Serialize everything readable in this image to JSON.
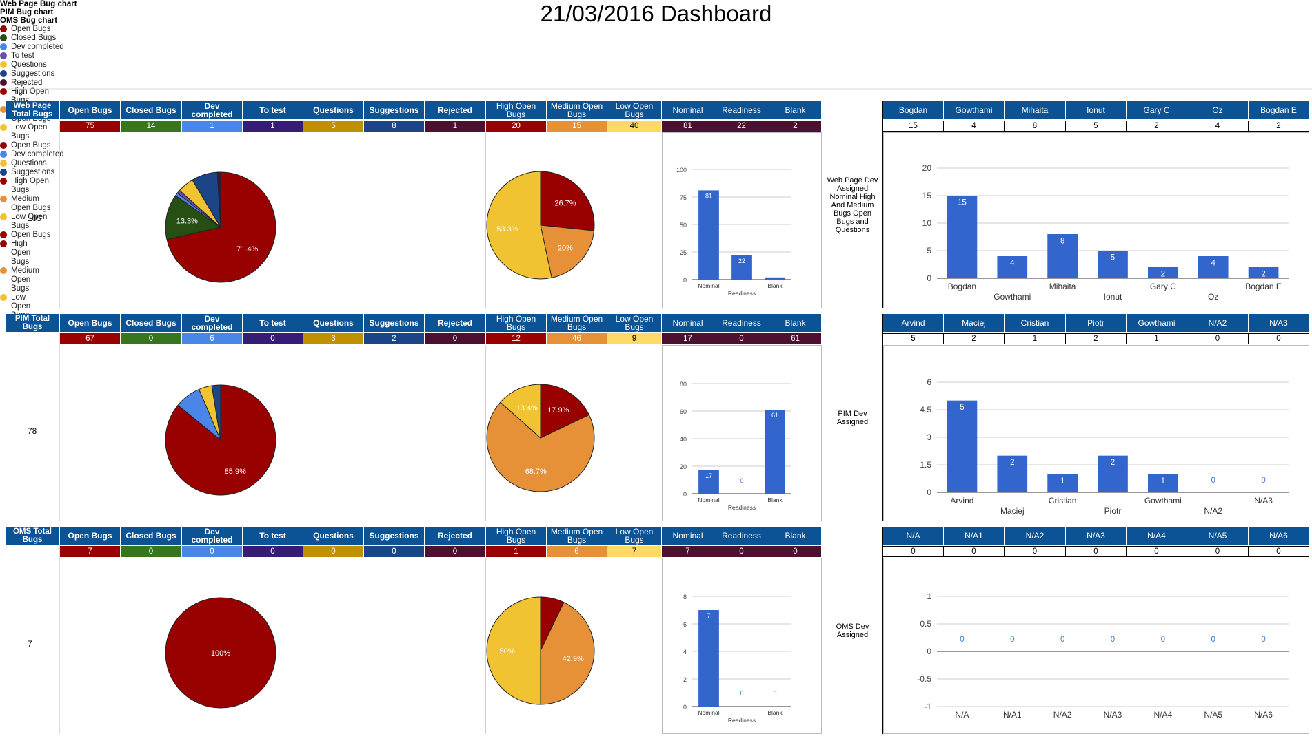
{
  "title": "21/03/2016 Dashboard",
  "colors": {
    "header_bg": "#0b5394",
    "open": "#990000",
    "closed": "#38761d",
    "dev_completed": "#4a86e8",
    "to_test": "#351c75",
    "questions": "#bf9000",
    "suggestions": "#1c4587",
    "rejected": "#4c1130",
    "high": "#990000",
    "medium": "#e69138",
    "low": "#ffd966",
    "nominal": "#4c1130",
    "pie_open": "#990000",
    "pie_closed": "#274e13",
    "pie_dev": "#4a86e8",
    "pie_totest": "#674ea7",
    "pie_questions": "#f1c232",
    "pie_suggestions": "#1c4587",
    "pie_rejected": "#4c1130",
    "pie_high": "#990000",
    "pie_medium": "#e69138",
    "pie_low": "#f1c232",
    "bar": "#3366cc"
  },
  "status_headers": [
    "Open Bugs",
    "Closed Bugs",
    "Dev completed",
    "To test",
    "Questions",
    "Suggestions",
    "Rejected",
    "High Open Bugs",
    "Medium Open Bugs",
    "Low Open Bugs",
    "Nominal",
    "Readiness",
    "Blank"
  ],
  "sections": [
    {
      "label": "Web Page Total Bugs",
      "total": "105",
      "values": [
        "75",
        "14",
        "1",
        "1",
        "5",
        "8",
        "1",
        "20",
        "15",
        "40",
        "81",
        "22",
        "2"
      ],
      "status_chart_title": "Web Page Bug chart",
      "side_label": "Web Page Dev Assigned Nominal High And Medium Bugs Open Bugs and Questions",
      "devs": [
        "Bogdan",
        "Gowthami",
        "Mihaita",
        "Ionut",
        "Gary C",
        "Oz",
        "Bogdan E"
      ],
      "dev_values": [
        "15",
        "4",
        "8",
        "5",
        "2",
        "4",
        "2"
      ]
    },
    {
      "label": "PIM Total Bugs",
      "total": "78",
      "values": [
        "67",
        "0",
        "6",
        "0",
        "3",
        "2",
        "0",
        "12",
        "46",
        "9",
        "17",
        "0",
        "61"
      ],
      "status_chart_title": "PIM Bug chart",
      "side_label": "PIM Dev Assigned",
      "devs": [
        "Arvind",
        "Maciej",
        "Cristian",
        "Piotr",
        "Gowthami",
        "N/A2",
        "N/A3"
      ],
      "dev_values": [
        "5",
        "2",
        "1",
        "2",
        "1",
        "0",
        "0"
      ]
    },
    {
      "label": "OMS Total Bugs",
      "total": "7",
      "values": [
        "7",
        "0",
        "0",
        "0",
        "0",
        "0",
        "0",
        "1",
        "6",
        "7",
        "7",
        "0",
        "0"
      ],
      "status_chart_title": "OMS Bug chart",
      "side_label": "OMS Dev Assigned",
      "devs": [
        "N/A",
        "N/A1",
        "N/A2",
        "N/A3",
        "N/A4",
        "N/A5",
        "N/A6"
      ],
      "dev_values": [
        "0",
        "0",
        "0",
        "0",
        "0",
        "0",
        "0"
      ]
    }
  ],
  "chart_data": [
    {
      "type": "pie",
      "title": "Web Page Bug chart",
      "categories": [
        "Open Bugs",
        "Closed Bugs",
        "Dev completed",
        "To test",
        "Questions",
        "Suggestions",
        "Rejected"
      ],
      "values": [
        75,
        14,
        1,
        1,
        5,
        8,
        1
      ],
      "slice_labels": [
        "71.4%",
        "13.3%",
        "",
        "",
        "",
        "",
        ""
      ],
      "legend": "right"
    },
    {
      "type": "pie",
      "title": "",
      "categories": [
        "High Open Bugs",
        "Medium Open Bugs",
        "Low Open Bugs"
      ],
      "values": [
        20,
        15,
        40
      ],
      "slice_labels": [
        "26.7%",
        "20%",
        "53.3%"
      ],
      "legend": "right"
    },
    {
      "type": "bar",
      "title": "",
      "categories": [
        "Nominal",
        "Readiness",
        "Blank"
      ],
      "values": [
        81,
        22,
        2
      ],
      "xlabel": "Readiness",
      "ylim": [
        0,
        100
      ],
      "yticks": [
        0,
        25,
        50,
        75,
        100
      ],
      "xtick_labels": [
        "Nominal",
        "",
        "Blank"
      ]
    },
    {
      "type": "bar",
      "title": "",
      "categories": [
        "Bogdan",
        "Gowthami",
        "Mihaita",
        "Ionut",
        "Gary C",
        "Oz",
        "Bogdan E"
      ],
      "values": [
        15,
        4,
        8,
        5,
        2,
        4,
        2
      ],
      "ylim": [
        0,
        20
      ],
      "yticks": [
        0,
        5,
        10,
        15,
        20
      ]
    },
    {
      "type": "pie",
      "title": "PIM Bug chart",
      "categories": [
        "Open Bugs",
        "Dev completed",
        "Questions",
        "Suggestions"
      ],
      "values": [
        67,
        6,
        3,
        2
      ],
      "slice_labels": [
        "85.9%",
        "",
        "",
        ""
      ],
      "legend": "right"
    },
    {
      "type": "pie",
      "title": "",
      "categories": [
        "High Open Bugs",
        "Medium Open Bugs",
        "Low Open Bugs"
      ],
      "values": [
        12,
        46,
        9
      ],
      "slice_labels": [
        "17.9%",
        "68.7%",
        "13.4%"
      ],
      "legend": "right"
    },
    {
      "type": "bar",
      "title": "",
      "categories": [
        "Nominal",
        "Readiness",
        "Blank"
      ],
      "values": [
        17,
        0,
        61
      ],
      "xlabel": "Readiness",
      "ylim": [
        0,
        80
      ],
      "yticks": [
        0,
        20,
        40,
        60,
        80
      ],
      "xtick_labels": [
        "Nominal",
        "",
        "Blank"
      ]
    },
    {
      "type": "bar",
      "title": "",
      "categories": [
        "Arvind",
        "Maciej",
        "Cristian",
        "Piotr",
        "Gowthami",
        "N/A2",
        "N/A3"
      ],
      "values": [
        5,
        2,
        1,
        2,
        1,
        0,
        0
      ],
      "ylim": [
        0,
        6
      ],
      "yticks": [
        0,
        1.5,
        3,
        4.5,
        6
      ]
    },
    {
      "type": "pie",
      "title": "OMS Bug chart",
      "categories": [
        "Open Bugs"
      ],
      "values": [
        7
      ],
      "slice_labels": [
        "100%"
      ],
      "legend": "right"
    },
    {
      "type": "pie",
      "title": "",
      "categories": [
        "High Open Bugs",
        "Medium Open Bugs",
        "Low Open Bugs"
      ],
      "values": [
        1,
        6,
        7
      ],
      "slice_labels": [
        "",
        "42.9%",
        "50%"
      ],
      "legend": "right"
    },
    {
      "type": "bar",
      "title": "",
      "categories": [
        "Nominal",
        "Readiness",
        "Blank"
      ],
      "values": [
        7,
        0,
        0
      ],
      "xlabel": "Readiness",
      "ylim": [
        0,
        8
      ],
      "yticks": [
        0,
        2,
        4,
        6,
        8
      ],
      "xtick_labels": [
        "Nominal",
        "",
        "Blank"
      ]
    },
    {
      "type": "bar",
      "title": "",
      "categories": [
        "N/A",
        "N/A1",
        "N/A2",
        "N/A3",
        "N/A4",
        "N/A5",
        "N/A6"
      ],
      "values": [
        0,
        0,
        0,
        0,
        0,
        0,
        0
      ],
      "ylim": [
        -1,
        1
      ],
      "yticks": [
        -1,
        -0.5,
        0,
        0.5,
        1
      ]
    }
  ]
}
